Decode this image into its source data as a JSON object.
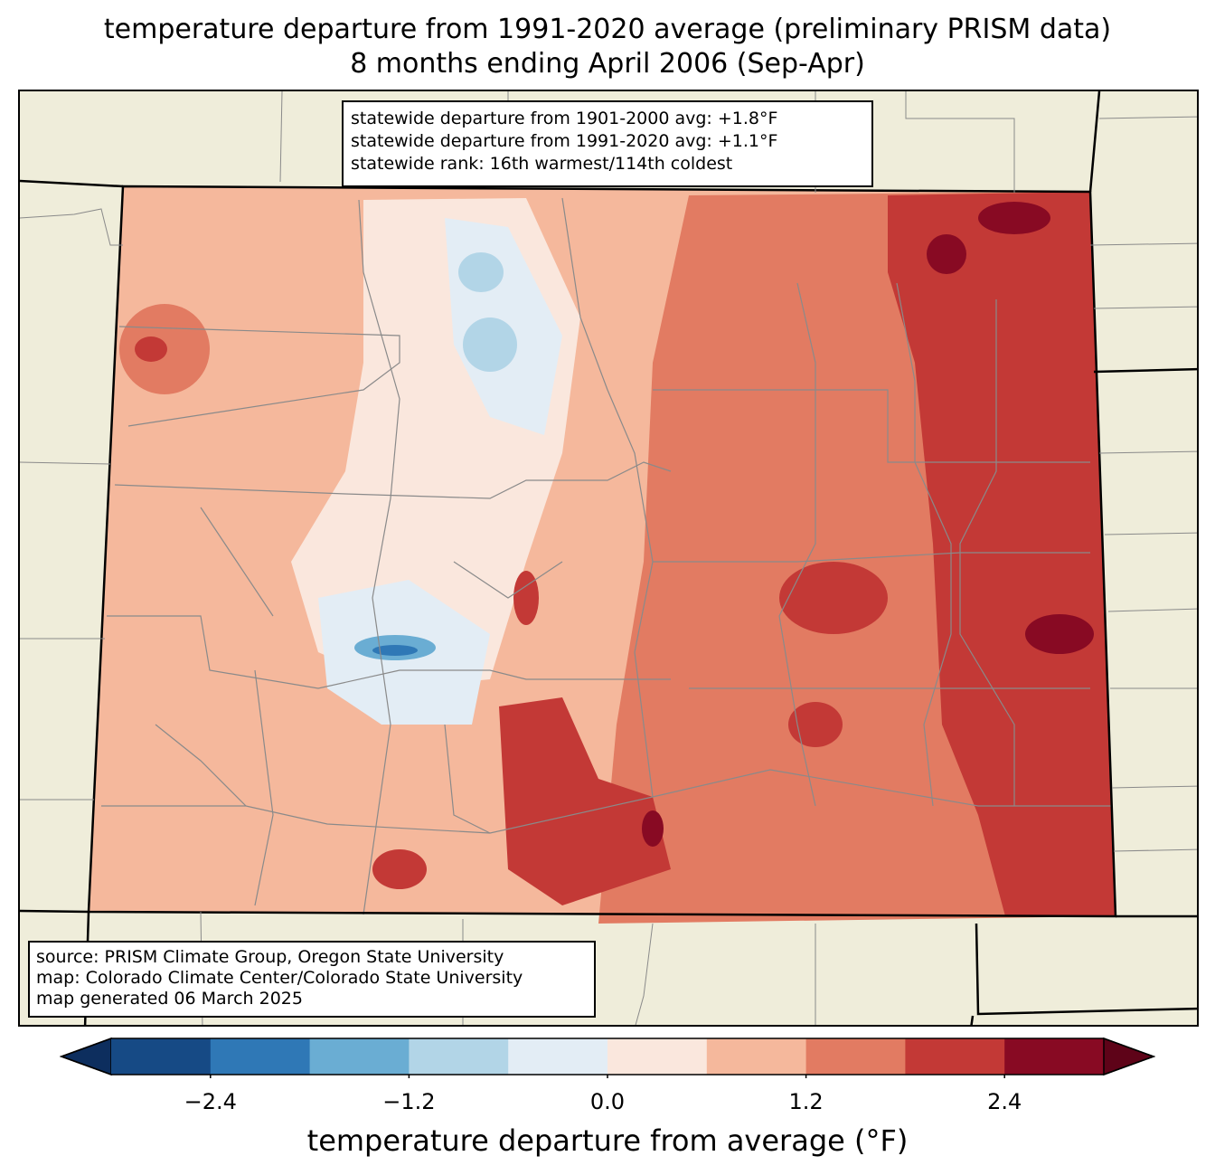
{
  "title_line1": "temperature departure from 1991-2020 average (preliminary PRISM data)",
  "title_line2": "8 months ending April 2006 (Sep-Apr)",
  "stats": [
    "statewide departure from 1901-2000 avg: +1.8°F",
    "statewide departure from 1991-2020 avg: +1.1°F",
    "statewide rank: 16th warmest/114th coldest"
  ],
  "source": [
    "source: PRISM Climate Group, Oregon State University",
    "map: Colorado Climate Center/Colorado State University",
    "map generated 06 March 2025"
  ],
  "colorbar": {
    "label": "temperature departure from average (°F)",
    "ticks": [
      "−2.4",
      "−1.2",
      "0.0",
      "1.2",
      "2.4"
    ],
    "tick_values": [
      -2.4,
      -1.2,
      0.0,
      1.2,
      2.4
    ],
    "range": [
      -3.0,
      3.0
    ],
    "levels": [
      -3.0,
      -2.4,
      -1.8,
      -1.2,
      -0.6,
      0.0,
      0.6,
      1.2,
      1.8,
      2.4,
      3.0
    ],
    "colors": [
      "#164a85",
      "#2f78b6",
      "#6aadd3",
      "#b2d5e7",
      "#e3edf5",
      "#fae7dd",
      "#f5b89c",
      "#e27b62",
      "#c33936",
      "#880a23"
    ],
    "under_color": "#0d2e5e",
    "over_color": "#5e0318"
  },
  "colors": {
    "land_outside": "#efedda",
    "county_lines": "#8a8a8a",
    "state_border": "#000000"
  }
}
